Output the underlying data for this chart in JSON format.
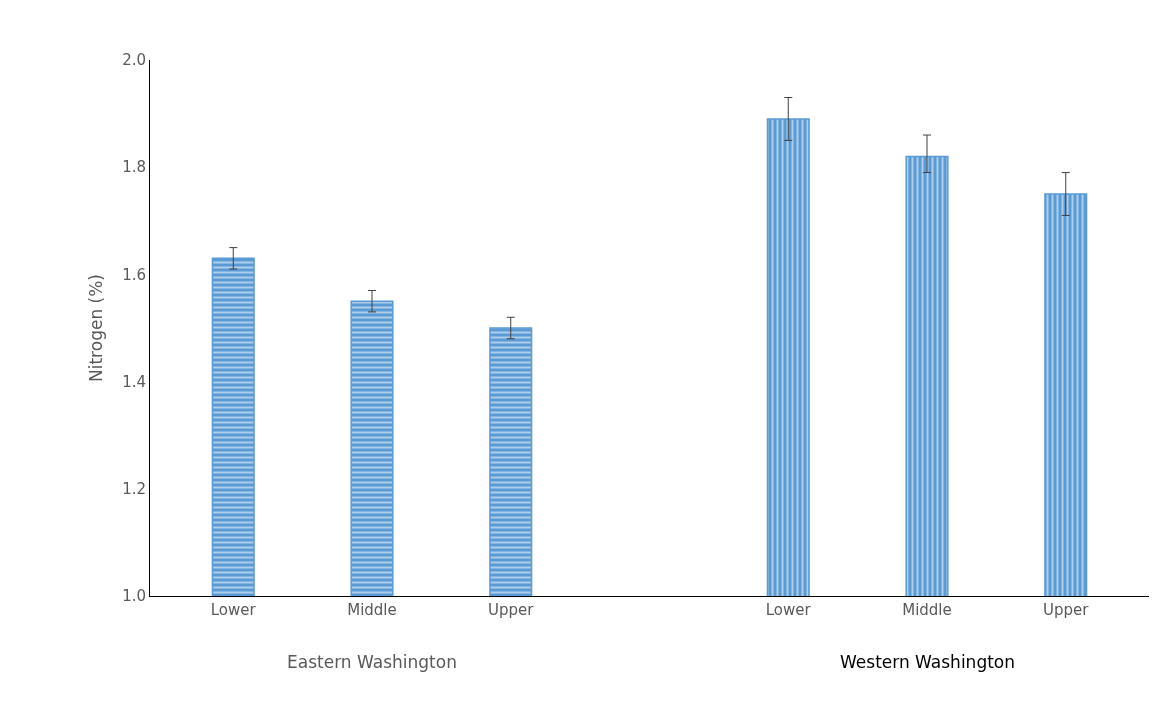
{
  "chart_data": {
    "type": "bar",
    "ylabel": "Nitrogen (%)",
    "categories": [
      "Lower",
      "Middle",
      "Upper",
      null,
      "Lower",
      "Middle",
      "Upper"
    ],
    "series": [
      {
        "color": "#5b9bd5",
        "values": [
          1.63,
          1.55,
          1.5,
          null,
          null,
          null,
          null
        ],
        "errors": [
          [
            1.61,
            1.65
          ],
          [
            1.53,
            1.57
          ],
          [
            1.48,
            1.52
          ],
          null,
          null,
          null,
          null
        ]
      },
      {
        "color": "#5b9bd5",
        "values": [
          null,
          null,
          null,
          null,
          1.89,
          1.82,
          1.75
        ],
        "errors": [
          null,
          null,
          null,
          null,
          [
            1.85,
            1.93
          ],
          [
            1.79,
            1.86
          ],
          [
            1.71,
            1.79
          ]
        ]
      }
    ],
    "annotations": [
      "Eastern Washington",
      "Western Washington"
    ],
    "ylim": [
      1.0,
      2.0
    ],
    "yticks": [
      {
        "value": 1.0,
        "label": "1.0"
      },
      {
        "value": 1.2,
        "label": "1.2"
      },
      {
        "value": 1.4,
        "label": "1.4"
      },
      {
        "value": 1.6,
        "label": "1.6"
      },
      {
        "value": 1.8,
        "label": "1.8"
      },
      {
        "value": 2.0,
        "label": "2.0"
      }
    ],
    "grid": false
  }
}
